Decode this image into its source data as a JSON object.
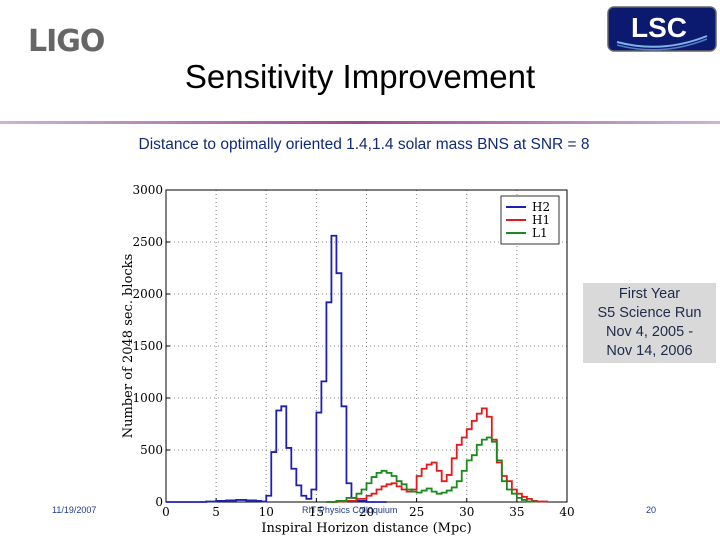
{
  "header": {
    "ligo_logo_text": "LIGO",
    "lsc_logo_text": "LSC",
    "title": "Sensitivity Improvement",
    "subtitle": "Distance to optimally oriented 1.4,1.4 solar mass BNS at SNR = 8"
  },
  "annotation": {
    "line1": "First Year",
    "line2": "S5 Science Run",
    "line3": "Nov 4, 2005 -",
    "line4": "Nov 14, 2006"
  },
  "footer": {
    "date": "11/19/2007",
    "center": "RIT Physics Colloquium",
    "page": "20"
  },
  "colors": {
    "title_rule": "#a04b8f",
    "subtitle": "#102a7a",
    "H2": "#1f1fb4",
    "H1": "#e31a1c",
    "L1": "#1a8a1a"
  },
  "chart_data": {
    "type": "line",
    "xlabel": "Inspiral Horizon distance (Mpc)",
    "ylabel": "Number of 2048 sec. blocks",
    "xlim": [
      0,
      40
    ],
    "ylim": [
      0,
      3000
    ],
    "xticks": [
      0,
      5,
      10,
      15,
      20,
      25,
      30,
      35,
      40
    ],
    "yticks": [
      0,
      500,
      1000,
      1500,
      2000,
      2500,
      3000
    ],
    "grid": true,
    "legend_position": "top-right",
    "bin_width": 0.5,
    "series": [
      {
        "name": "H2",
        "x": [
          0,
          1,
          2,
          3,
          4,
          5,
          6,
          7,
          8,
          9,
          9.5,
          10,
          10.5,
          11,
          11.5,
          12,
          12.5,
          13,
          13.5,
          14,
          14.5,
          15,
          15.5,
          16,
          16.5,
          17,
          17.5,
          18,
          18.5,
          19,
          20,
          22
        ],
        "y": [
          0,
          0,
          0,
          0,
          5,
          10,
          15,
          20,
          15,
          10,
          5,
          60,
          480,
          880,
          920,
          520,
          320,
          160,
          60,
          30,
          120,
          860,
          1160,
          1920,
          2560,
          2200,
          920,
          180,
          40,
          10,
          0,
          0
        ]
      },
      {
        "name": "H1",
        "x": [
          16,
          17,
          18,
          19,
          20,
          20.5,
          21,
          21.5,
          22,
          22.5,
          23,
          23.5,
          24,
          24.5,
          25,
          25.5,
          26,
          26.5,
          27,
          27.5,
          28,
          28.5,
          29,
          29.5,
          30,
          30.5,
          31,
          31.5,
          32,
          32.5,
          33,
          33.5,
          34,
          34.5,
          35,
          35.5,
          36,
          36.5,
          37,
          38
        ],
        "y": [
          0,
          5,
          10,
          30,
          60,
          80,
          120,
          150,
          170,
          180,
          150,
          120,
          100,
          120,
          250,
          320,
          360,
          380,
          300,
          200,
          260,
          420,
          550,
          620,
          700,
          780,
          850,
          900,
          820,
          600,
          380,
          250,
          200,
          120,
          80,
          50,
          30,
          10,
          5,
          0
        ]
      },
      {
        "name": "L1",
        "x": [
          16,
          17,
          18,
          19,
          19.5,
          20,
          20.5,
          21,
          21.5,
          22,
          22.5,
          23,
          23.5,
          24,
          24.5,
          25,
          25.5,
          26,
          26.5,
          27,
          27.5,
          28,
          28.5,
          29,
          29.5,
          30,
          30.5,
          31,
          31.5,
          32,
          32.5,
          33,
          33.5,
          34,
          34.5,
          35,
          35.5,
          36,
          37
        ],
        "y": [
          0,
          10,
          40,
          80,
          120,
          180,
          240,
          280,
          300,
          280,
          250,
          200,
          170,
          120,
          100,
          90,
          110,
          130,
          100,
          80,
          90,
          110,
          140,
          200,
          300,
          400,
          450,
          550,
          600,
          620,
          580,
          400,
          200,
          120,
          80,
          40,
          20,
          5,
          0
        ]
      }
    ]
  }
}
